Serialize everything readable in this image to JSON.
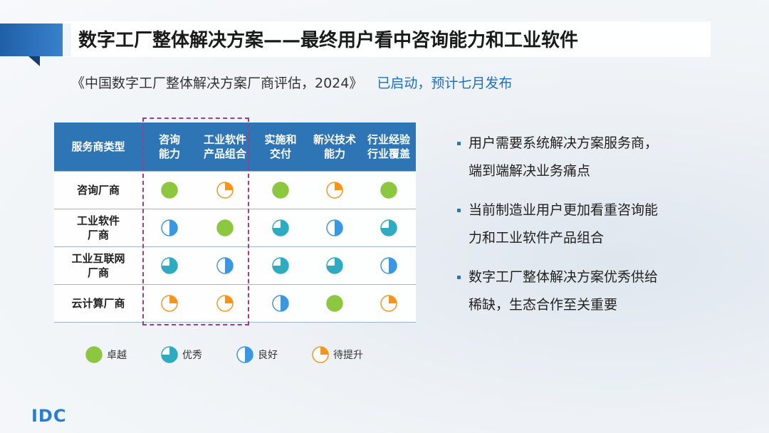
{
  "title": "数字工厂整体解决方案——最终用户看中咨询能力和工业软件",
  "subtitle": {
    "report": "《中国数字工厂整体解决方案厂商评估，2024》",
    "status": "已启动，预计七月发布"
  },
  "table": {
    "corner": "服务商类型",
    "columns": [
      [
        "咨询",
        "能力"
      ],
      [
        "工业软件",
        "产品组合"
      ],
      [
        "实施和",
        "交付"
      ],
      [
        "新兴技术",
        "能力"
      ],
      [
        "行业经验",
        "行业覆盖"
      ]
    ],
    "rows": [
      {
        "name": [
          "咨询厂商"
        ],
        "cells": [
          1,
          0.25,
          1,
          0.25,
          1
        ]
      },
      {
        "name": [
          "工业软件",
          "厂商"
        ],
        "cells": [
          0.5,
          1,
          0.75,
          0.5,
          0.75
        ]
      },
      {
        "name": [
          "工业互联网",
          "厂商"
        ],
        "cells": [
          0.75,
          0.5,
          0.75,
          0.75,
          0.5
        ]
      },
      {
        "name": [
          "云计算厂商"
        ],
        "cells": [
          0.25,
          0.25,
          0.5,
          1,
          0.25
        ]
      }
    ]
  },
  "legend": [
    {
      "label": "卓越",
      "fill": 1,
      "color": "#8dc63f"
    },
    {
      "label": "优秀",
      "fill": 0.75,
      "color": "#2eaac1"
    },
    {
      "label": "良好",
      "fill": 0.5,
      "color": "#3a97e0"
    },
    {
      "label": "待提升",
      "fill": 0.25,
      "color": "#f7941d"
    }
  ],
  "bullets": [
    "用户需要系统解决方案服务商，端到端解决业务痛点",
    "当前制造业用户更加看重咨询能力和工业软件产品组合",
    "数字工厂整体解决方案优秀供给稀缺，生态合作至关重要"
  ],
  "logo": "IDC"
}
